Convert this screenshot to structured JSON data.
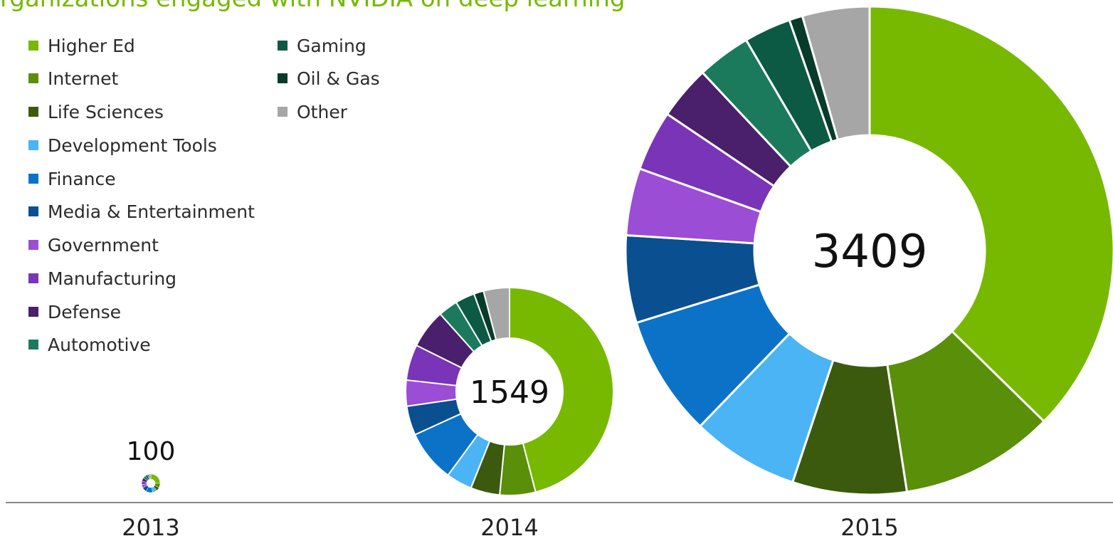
{
  "title": "rganizations engaged with NVIDIA on deep learning",
  "colors": {
    "Higher Ed": "#76b900",
    "Internet": "#5a8f0a",
    "Life Sciences": "#3c5a0e",
    "Development Tools": "#4ab4f4",
    "Finance": "#0b72c8",
    "Media & Entertainment": "#0a4f90",
    "Government": "#9b4dd6",
    "Manufacturing": "#7a34b8",
    "Defense": "#4a1f6b",
    "Automotive": "#1c7a5c",
    "Gaming": "#0d5a44",
    "Oil & Gas": "#083b2a",
    "Other": "#a6a6a6",
    "axis": "#8a8a8a"
  },
  "legend": {
    "column1": [
      "Higher Ed",
      "Internet",
      "Life Sciences",
      "Development Tools",
      "Finance",
      "Media & Entertainment",
      "Government",
      "Manufacturing",
      "Defense",
      "Automotive"
    ],
    "column2": [
      "Gaming",
      "Oil & Gas",
      "Other"
    ]
  },
  "chart_data": {
    "type": "pie",
    "variant": "donut",
    "categories": [
      "Higher Ed",
      "Internet",
      "Life Sciences",
      "Development Tools",
      "Finance",
      "Media & Entertainment",
      "Government",
      "Manufacturing",
      "Defense",
      "Automotive",
      "Gaming",
      "Oil & Gas",
      "Other"
    ],
    "series": [
      {
        "name": "2013",
        "total": 100,
        "total_label": "100",
        "values": [
          25,
          8,
          6,
          8,
          12,
          8,
          6,
          6,
          6,
          5,
          4,
          2,
          4
        ]
      },
      {
        "name": "2014",
        "total": 1549,
        "total_label": "1549",
        "values": [
          45.5,
          5.5,
          4.5,
          4,
          8,
          4.5,
          4,
          5.5,
          6,
          3,
          3,
          1.5,
          4
        ]
      },
      {
        "name": "2015",
        "total": 3409,
        "total_label": "3409",
        "values": [
          42,
          11.5,
          8.5,
          8,
          9,
          6.5,
          5,
          4.5,
          4,
          4,
          3.5,
          1,
          5
        ]
      }
    ],
    "x": [
      "2013",
      "2014",
      "2015"
    ],
    "legend_position": "top-left"
  }
}
